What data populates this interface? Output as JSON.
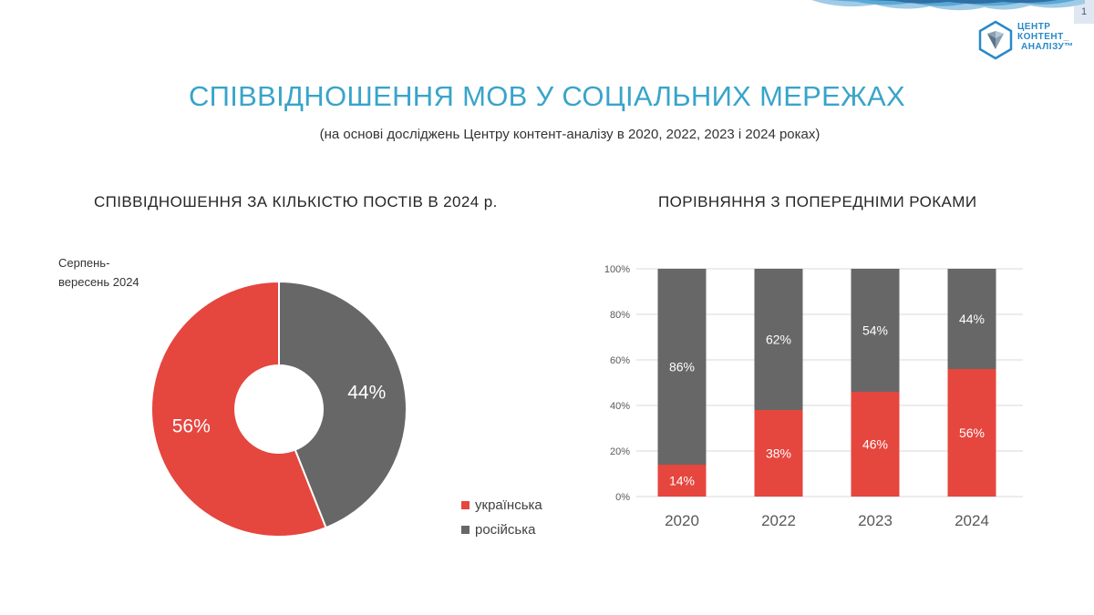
{
  "page_number": "1",
  "logo": {
    "line1": "ЦЕНТР",
    "line2": "КОНТЕНТ_",
    "line3": "АНАЛІЗУ™"
  },
  "title": "СПІВВІДНОШЕННЯ МОВ У СОЦІАЛЬНИХ МЕРЕЖАХ",
  "subtitle": "(на основі досліджень Центру контент-аналізу в 2020, 2022, 2023 і 2024 роках)",
  "colors": {
    "ukrainian": "#e5463e",
    "russian": "#676767",
    "accent": "#39a4c9"
  },
  "chart_data": [
    {
      "type": "pie",
      "title": "СПІВВІДНОШЕННЯ ЗА КІЛЬКІСТЮ ПОСТІВ В 2024 р.",
      "period_label": "Серпень-вересень 2024",
      "labels": [
        "українська",
        "російська"
      ],
      "values": [
        56,
        44
      ],
      "value_labels": [
        "56%",
        "44%"
      ],
      "colors": [
        "#e5463e",
        "#676767"
      ],
      "legend": "bottom-right",
      "donut": true
    },
    {
      "type": "bar",
      "stacked": true,
      "title": "ПОРІВНЯННЯ З ПОПЕРЕДНІМИ РОКАМИ",
      "categories": [
        "2020",
        "2022",
        "2023",
        "2024"
      ],
      "series": [
        {
          "name": "українська",
          "values": [
            14,
            38,
            46,
            56
          ],
          "labels": [
            "14%",
            "38%",
            "46%",
            "56%"
          ],
          "color": "#e5463e"
        },
        {
          "name": "російська",
          "values": [
            86,
            62,
            54,
            44
          ],
          "labels": [
            "86%",
            "62%",
            "54%",
            "44%"
          ],
          "color": "#676767"
        }
      ],
      "yticks": [
        "0%",
        "20%",
        "40%",
        "60%",
        "80%",
        "100%"
      ],
      "ylim": [
        0,
        100
      ],
      "grid": true
    }
  ]
}
